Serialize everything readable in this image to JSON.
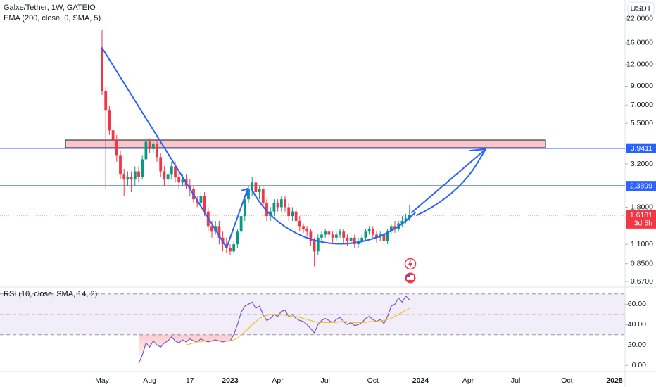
{
  "header": {
    "symbol": "Galxe/Tether, 1W, GATEIO",
    "indicator": "EMA (200, close, 0, SMA, 5)",
    "currency": "USDT"
  },
  "chart_data": [
    {
      "type": "candlestick",
      "categories": [
        "May",
        null,
        null,
        null,
        null,
        null,
        null,
        null,
        null,
        null,
        null,
        null,
        null,
        "Aug",
        null,
        null,
        null,
        null,
        null,
        null,
        null,
        null,
        null,
        null,
        "17",
        null,
        null,
        null,
        null,
        null,
        null,
        null,
        null,
        null,
        null,
        "2023",
        null,
        null,
        null,
        null,
        null,
        null,
        null,
        null,
        null,
        null,
        null,
        null,
        "Apr",
        null,
        null,
        null,
        null,
        null,
        null,
        null,
        null,
        null,
        null,
        null,
        null,
        "Jul",
        null,
        null,
        null,
        null,
        null,
        null,
        null,
        null,
        null,
        null,
        null,
        null,
        "Oct",
        null,
        null,
        null,
        null,
        null,
        null,
        null,
        null,
        null,
        null,
        null,
        null,
        "2024",
        null,
        null,
        null,
        null,
        null,
        null,
        null,
        null,
        null,
        null,
        null,
        null,
        "Apr",
        null,
        null,
        null,
        null,
        null,
        null,
        null,
        null,
        null,
        null,
        null,
        null,
        "Jul",
        null,
        null,
        null,
        null,
        null,
        null,
        null,
        null,
        null,
        null,
        null,
        null,
        null,
        "Oct",
        null,
        null,
        null,
        null,
        null,
        null,
        null,
        null,
        null,
        null,
        null,
        null,
        "2025"
      ],
      "open": [
        15,
        8.4,
        6.5,
        5.0,
        4.4,
        3.6,
        2.8,
        2.6,
        2.7,
        2.6,
        2.9,
        2.7,
        3.4,
        4.3,
        3.9,
        4.2,
        3.5,
        2.9,
        2.6,
        2.8,
        3.1,
        2.7,
        2.5,
        2.6,
        2.4,
        2.3,
        2.0,
        1.9,
        2.1,
        1.7,
        1.4,
        1.3,
        1.4,
        1.2,
        1.1,
        1.05,
        1.0,
        1.1,
        1.3,
        1.6,
        2.0,
        2.3,
        2.5,
        2.2,
        2.3,
        1.9,
        1.6,
        1.7,
        1.9,
        1.8,
        2.0,
        1.8,
        1.6,
        1.7,
        1.5,
        1.4,
        1.35,
        1.3,
        1.15,
        1.0,
        1.2,
        1.25,
        1.3,
        1.25,
        1.2,
        1.25,
        1.3,
        1.2,
        1.15,
        1.2,
        1.1,
        1.15,
        1.2,
        1.3,
        1.35,
        1.25,
        1.2,
        1.25,
        1.15,
        1.3,
        1.4,
        1.35,
        1.45,
        1.5,
        1.55,
        null,
        null,
        null,
        null,
        null,
        null,
        null,
        null,
        null,
        null,
        null,
        null,
        null,
        null,
        null,
        null,
        null,
        null,
        null,
        null,
        null,
        null,
        null,
        null,
        null,
        null,
        null,
        null,
        null,
        null,
        null,
        null,
        null,
        null,
        null,
        null,
        null,
        null,
        null,
        null,
        null,
        null,
        null,
        null,
        null,
        null,
        null,
        null,
        null,
        null,
        null,
        null,
        null,
        null,
        null,
        null
      ],
      "high": [
        19,
        9.0,
        6.9,
        5.3,
        4.7,
        3.8,
        3.0,
        2.9,
        2.9,
        3.1,
        3.1,
        3.6,
        4.7,
        4.5,
        4.4,
        4.4,
        3.7,
        3.1,
        2.9,
        3.3,
        3.3,
        2.9,
        2.8,
        2.8,
        2.6,
        2.4,
        2.1,
        2.2,
        2.2,
        1.8,
        1.5,
        1.5,
        1.5,
        1.3,
        1.2,
        1.1,
        1.15,
        1.35,
        1.7,
        2.1,
        2.4,
        2.7,
        2.7,
        2.4,
        2.4,
        2.0,
        1.8,
        2.0,
        2.0,
        2.1,
        2.1,
        1.9,
        1.8,
        1.8,
        1.6,
        1.45,
        1.4,
        1.35,
        1.2,
        1.25,
        1.3,
        1.35,
        1.35,
        1.3,
        1.3,
        1.35,
        1.35,
        1.25,
        1.25,
        1.25,
        1.2,
        1.25,
        1.35,
        1.4,
        1.4,
        1.3,
        1.3,
        1.3,
        1.35,
        1.45,
        1.5,
        1.5,
        1.6,
        1.65,
        1.85,
        null,
        null,
        null,
        null,
        null,
        null,
        null,
        null,
        null,
        null,
        null,
        null,
        null,
        null,
        null,
        null,
        null,
        null,
        null,
        null,
        null,
        null,
        null,
        null,
        null,
        null,
        null,
        null,
        null,
        null,
        null,
        null,
        null,
        null,
        null,
        null,
        null,
        null,
        null,
        null,
        null,
        null,
        null,
        null,
        null,
        null,
        null,
        null,
        null,
        null,
        null,
        null,
        null,
        null,
        null,
        null
      ],
      "low": [
        8,
        2.3,
        4.7,
        4.1,
        3.3,
        2.6,
        2.1,
        2.4,
        2.2,
        2.4,
        2.5,
        2.6,
        3.3,
        3.7,
        3.7,
        3.3,
        2.7,
        2.4,
        2.4,
        2.6,
        2.5,
        2.3,
        2.4,
        2.3,
        2.1,
        1.9,
        1.8,
        1.8,
        1.6,
        1.3,
        1.2,
        1.25,
        1.1,
        1.0,
        0.98,
        0.95,
        0.97,
        1.05,
        1.25,
        1.5,
        1.9,
        2.1,
        2.0,
        2.0,
        1.8,
        1.5,
        1.5,
        1.6,
        1.7,
        1.7,
        1.7,
        1.5,
        1.5,
        1.4,
        1.3,
        1.28,
        1.22,
        1.08,
        0.82,
        0.95,
        1.15,
        1.2,
        1.18,
        1.12,
        1.15,
        1.2,
        1.12,
        1.08,
        1.1,
        1.05,
        1.05,
        1.1,
        1.15,
        1.25,
        1.2,
        1.12,
        1.15,
        1.1,
        1.1,
        1.25,
        1.28,
        1.3,
        1.38,
        1.45,
        1.5,
        null,
        null,
        null,
        null,
        null,
        null,
        null,
        null,
        null,
        null,
        null,
        null,
        null,
        null,
        null,
        null,
        null,
        null,
        null,
        null,
        null,
        null,
        null,
        null,
        null,
        null,
        null,
        null,
        null,
        null,
        null,
        null,
        null,
        null,
        null,
        null,
        null,
        null,
        null,
        null,
        null,
        null,
        null,
        null,
        null,
        null,
        null,
        null,
        null,
        null,
        null,
        null,
        null,
        null,
        null,
        null
      ],
      "close": [
        8.4,
        6.5,
        5.0,
        4.4,
        3.6,
        2.8,
        2.6,
        2.7,
        2.6,
        2.9,
        2.7,
        3.4,
        4.3,
        3.9,
        4.2,
        3.5,
        2.9,
        2.6,
        2.8,
        3.1,
        2.7,
        2.5,
        2.6,
        2.4,
        2.3,
        2.0,
        1.9,
        2.1,
        1.7,
        1.4,
        1.3,
        1.4,
        1.2,
        1.1,
        1.05,
        1.0,
        1.1,
        1.3,
        1.6,
        2.0,
        2.3,
        2.5,
        2.2,
        2.3,
        1.9,
        1.6,
        1.7,
        1.9,
        1.8,
        2.0,
        1.8,
        1.6,
        1.7,
        1.5,
        1.4,
        1.35,
        1.3,
        1.15,
        1.0,
        1.2,
        1.25,
        1.3,
        1.25,
        1.2,
        1.25,
        1.3,
        1.2,
        1.15,
        1.2,
        1.1,
        1.15,
        1.2,
        1.3,
        1.35,
        1.25,
        1.2,
        1.25,
        1.15,
        1.3,
        1.4,
        1.35,
        1.45,
        1.5,
        1.55,
        1.62,
        null,
        null,
        null,
        null,
        null,
        null,
        null,
        null,
        null,
        null,
        null,
        null,
        null,
        null,
        null,
        null,
        null,
        null,
        null,
        null,
        null,
        null,
        null,
        null,
        null,
        null,
        null,
        null,
        null,
        null,
        null,
        null,
        null,
        null,
        null,
        null,
        null,
        null,
        null,
        null,
        null,
        null,
        null,
        null,
        null,
        null,
        null,
        null,
        null,
        null,
        null,
        null,
        null,
        null,
        null,
        null
      ],
      "up_color": "#089981",
      "down_color": "#f23645",
      "log_scale": true,
      "grid": false,
      "ylim": [
        0.64,
        28.3
      ],
      "yticks": [
        {
          "value": 22,
          "label": "22.0000"
        },
        {
          "value": 16,
          "label": "16.0000"
        },
        {
          "value": 12,
          "label": "12.0000"
        },
        {
          "value": 9,
          "label": "9.0000"
        },
        {
          "value": 7,
          "label": "7.0000"
        },
        {
          "value": 5.5,
          "label": "5.5000"
        },
        {
          "value": 3.2,
          "label": "3.2000"
        },
        {
          "value": 1.8,
          "label": "1.8000"
        },
        {
          "value": 1.1,
          "label": "1.1000"
        },
        {
          "value": 0.85,
          "label": "0.8500"
        },
        {
          "value": 0.67,
          "label": "0.6700"
        }
      ],
      "price_lines": [
        {
          "value": 3.9411,
          "color": "#2962ff"
        },
        {
          "value": 2.3899,
          "color": "#2962ff"
        }
      ],
      "last_price": {
        "value": 1.6181,
        "countdown": "3d 5h",
        "color": "#f23645"
      }
    },
    {
      "type": "line",
      "title": "RSI (10, close, SMA, 14, 2)",
      "series": [
        {
          "color": "#7e57c2",
          "values": [
            null,
            null,
            null,
            null,
            null,
            null,
            null,
            null,
            null,
            null,
            2,
            10,
            22,
            18,
            24,
            20,
            18,
            22,
            24,
            28,
            24,
            22,
            25,
            23,
            26,
            24,
            23,
            26,
            24,
            23,
            24,
            25,
            24,
            23,
            24,
            24,
            30,
            40,
            52,
            58,
            60,
            62,
            56,
            58,
            50,
            44,
            46,
            50,
            48,
            53,
            54,
            48,
            50,
            46,
            44,
            43,
            40,
            36,
            32,
            40,
            44,
            46,
            44,
            42,
            45,
            47,
            43,
            40,
            42,
            39,
            40,
            42,
            46,
            48,
            45,
            43,
            45,
            41,
            48,
            58,
            60,
            66,
            62,
            68,
            64,
            null,
            null,
            null,
            null,
            null,
            null,
            null,
            null,
            null,
            null,
            null,
            null,
            null,
            null,
            null,
            null,
            null,
            null,
            null,
            null,
            null,
            null,
            null,
            null,
            null,
            null,
            null,
            null,
            null,
            null,
            null,
            null,
            null,
            null,
            null,
            null,
            null,
            null,
            null,
            null,
            null,
            null,
            null,
            null,
            null,
            null,
            null,
            null,
            null,
            null,
            null,
            null,
            null,
            null,
            null,
            null
          ]
        },
        {
          "color": "#f2c12e",
          "values": [
            null,
            null,
            null,
            null,
            null,
            null,
            null,
            null,
            null,
            null,
            null,
            null,
            null,
            null,
            null,
            null,
            null,
            null,
            null,
            null,
            null,
            null,
            null,
            20,
            21,
            22,
            23,
            23,
            24,
            24,
            24,
            24,
            24,
            24,
            24,
            24,
            25,
            27,
            30,
            33,
            36,
            40,
            43,
            46,
            48,
            49,
            50,
            50,
            50,
            50,
            49,
            49,
            48,
            48,
            47,
            46,
            45,
            44,
            43,
            42,
            42,
            42,
            42,
            42,
            42,
            43,
            43,
            43,
            42,
            42,
            42,
            42,
            42,
            43,
            43,
            43,
            44,
            44,
            45,
            46,
            48,
            50,
            52,
            54,
            56,
            null,
            null,
            null,
            null,
            null,
            null,
            null,
            null,
            null,
            null,
            null,
            null,
            null,
            null,
            null,
            null,
            null,
            null,
            null,
            null,
            null,
            null,
            null,
            null,
            null,
            null,
            null,
            null,
            null,
            null,
            null,
            null,
            null,
            null,
            null,
            null,
            null,
            null,
            null,
            null,
            null,
            null,
            null,
            null,
            null,
            null,
            null,
            null,
            null,
            null,
            null,
            null,
            null,
            null,
            null,
            null
          ]
        }
      ],
      "levels": [
        70,
        50,
        30
      ],
      "oversold_color": "#f23645",
      "ylim": [
        -6,
        74
      ],
      "yticks": [
        {
          "value": 60,
          "label": "60.00"
        },
        {
          "value": 40,
          "label": "40.00"
        },
        {
          "value": 20,
          "label": "20.00"
        },
        {
          "value": 0,
          "label": "0.00"
        }
      ]
    }
  ]
}
